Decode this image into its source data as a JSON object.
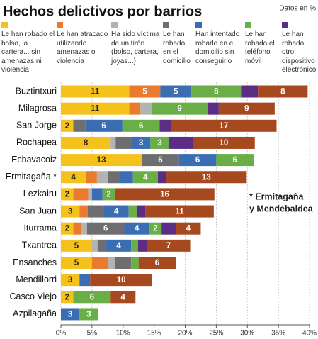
{
  "chart_data": {
    "type": "stacked-bar-horizontal",
    "title": "Hechos delictivos por barrios",
    "source": "Datos en %",
    "annotation": [
      "* Ermitagaña",
      "y Mendebaldea"
    ],
    "categories": [
      "Buztintxuri",
      "Milagrosa",
      "San Jorge",
      "Rochapea",
      "Echavacoiz",
      "Ermitagaña *",
      "Lezkairu",
      "San Juan",
      "Iturrama",
      "Txantrea",
      "Ensanches",
      "Mendillorri",
      "Casco Viejo",
      "Azpilagaña"
    ],
    "series": [
      {
        "name": "Le han robado el bolso, la cartera... sin amenazas ni violencia",
        "color": "#f5c21b",
        "values": [
          11,
          11,
          2,
          8,
          13,
          4,
          2,
          3,
          2,
          5,
          5,
          3,
          2,
          null
        ]
      },
      {
        "name": "Le han atracado utilizando amenazas o violencia",
        "color": "#ea7a2e",
        "values": [
          5,
          1.8,
          null,
          null,
          null,
          1.8,
          2.4,
          1.3,
          1.3,
          null,
          2.6,
          null,
          null,
          null
        ]
      },
      {
        "name": "Ha sido víctima de un tirón (bolso, cartera, joyas...)",
        "color": "#b3b3b3",
        "values": [
          null,
          1.8,
          null,
          0.8,
          null,
          1.8,
          0.6,
          null,
          0.9,
          0.9,
          1.1,
          null,
          null,
          null
        ]
      },
      {
        "name": "Le han robado en el domicilio",
        "color": "#6e6e70",
        "values": [
          null,
          null,
          1.9,
          2.6,
          6,
          1.8,
          null,
          2.6,
          6,
          1.4,
          2.6,
          null,
          null,
          null
        ]
      },
      {
        "name": "Han intentado robarle en el domicilio sin conseguirlo",
        "color": "#3b6db3",
        "values": [
          5,
          null,
          6,
          3,
          6,
          2.2,
          1.7,
          4,
          4,
          4,
          null,
          1.7,
          null,
          3
        ]
      },
      {
        "name": "Le han robado el teléfono móvil",
        "color": "#6aae47",
        "values": [
          8,
          9,
          6,
          3,
          6,
          4,
          2,
          1.4,
          2,
          1.1,
          1.2,
          null,
          6,
          3
        ]
      },
      {
        "name": "Le han robado otro dispositivo electrónico",
        "color": "#5c2d84",
        "values": [
          2.7,
          1.8,
          1.8,
          3.8,
          null,
          1.3,
          null,
          1.3,
          2.3,
          1.4,
          null,
          null,
          null,
          null
        ]
      },
      {
        "color": "#a6491f",
        "values": [
          8,
          9,
          17,
          10,
          null,
          13,
          16,
          11,
          4,
          7,
          6,
          10,
          4,
          null
        ]
      }
    ],
    "xlim": [
      0,
      40
    ],
    "xticks": [
      {
        "value": 0,
        "label": "0%"
      },
      {
        "value": 5,
        "label": "5%"
      },
      {
        "value": 10,
        "label": "10%"
      },
      {
        "value": 15,
        "label": "15%"
      },
      {
        "value": 20,
        "label": "20%"
      },
      {
        "value": 25,
        "label": "25%"
      },
      {
        "value": 30,
        "label": "30%"
      },
      {
        "value": 35,
        "label": "35%"
      },
      {
        "value": 40,
        "label": "40%"
      }
    ],
    "grid": true
  }
}
